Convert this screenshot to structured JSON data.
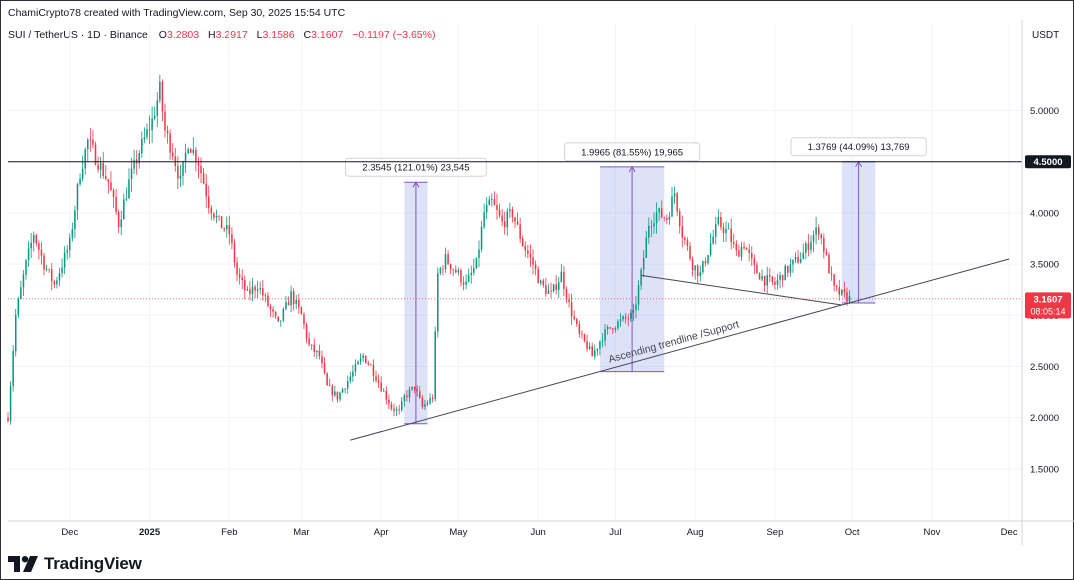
{
  "header": {
    "credit": "ChamiCrypto78 created with TradingView.com, Sep 30, 2025 15:54 UTC",
    "symbol": "SUI / TetherUS · 1D · Binance",
    "ohlc": [
      {
        "label": "O",
        "value": "3.2803"
      },
      {
        "label": "H",
        "value": "3.2917"
      },
      {
        "label": "L",
        "value": "3.1586"
      },
      {
        "label": "C",
        "value": "3.1607"
      },
      {
        "label": "",
        "value": "−0.1197 (−3.65%)"
      }
    ],
    "currency": "USDT"
  },
  "footer": {
    "brand": "TradingView"
  },
  "colors": {
    "up": "#089981",
    "down": "#f23645",
    "range_fill": "#5b6ee1",
    "current_price_bg": "#f23645",
    "resistance_bg": "#131722",
    "grid": "#f0f3fa"
  },
  "chart_data": {
    "type": "candlestick",
    "title": "",
    "ylim": [
      1.0,
      5.65
    ],
    "y_ticks": [
      1.5,
      2.0,
      2.5,
      3.0,
      3.5,
      4.0,
      4.5,
      5.0
    ],
    "y_tick_labels": [
      "1.5000",
      "2.0000",
      "2.5000",
      "3.0000",
      "3.5000",
      "4.0000",
      "4.5000",
      "5.0000"
    ],
    "x_labels": [
      {
        "label": "Dec",
        "date": "2024-12-01"
      },
      {
        "label": "2025",
        "date": "2025-01-01"
      },
      {
        "label": "Feb",
        "date": "2025-02-01"
      },
      {
        "label": "Mar",
        "date": "2025-03-01"
      },
      {
        "label": "Apr",
        "date": "2025-04-01"
      },
      {
        "label": "May",
        "date": "2025-05-01"
      },
      {
        "label": "Jun",
        "date": "2025-06-01"
      },
      {
        "label": "Jul",
        "date": "2025-07-01"
      },
      {
        "label": "Aug",
        "date": "2025-08-01"
      },
      {
        "label": "Sep",
        "date": "2025-09-01"
      },
      {
        "label": "Oct",
        "date": "2025-10-01"
      },
      {
        "label": "Nov",
        "date": "2025-11-01"
      },
      {
        "label": "Dec",
        "date": "2025-12-01"
      }
    ],
    "x_start": "2024-11-07",
    "x_end": "2025-12-06",
    "price_path": [
      [
        "2024-11-07",
        2.0
      ],
      [
        "2024-11-10",
        3.0
      ],
      [
        "2024-11-14",
        3.5
      ],
      [
        "2024-11-17",
        3.8
      ],
      [
        "2024-11-21",
        3.5
      ],
      [
        "2024-11-25",
        3.3
      ],
      [
        "2024-11-28",
        3.5
      ],
      [
        "2024-12-01",
        3.7
      ],
      [
        "2024-12-05",
        4.4
      ],
      [
        "2024-12-08",
        4.7
      ],
      [
        "2024-12-12",
        4.5
      ],
      [
        "2024-12-16",
        4.3
      ],
      [
        "2024-12-20",
        3.9
      ],
      [
        "2024-12-24",
        4.3
      ],
      [
        "2024-12-28",
        4.6
      ],
      [
        "2025-01-02",
        4.9
      ],
      [
        "2025-01-05",
        5.2
      ],
      [
        "2025-01-07",
        4.8
      ],
      [
        "2025-01-10",
        4.6
      ],
      [
        "2025-01-13",
        4.3
      ],
      [
        "2025-01-16",
        4.7
      ],
      [
        "2025-01-20",
        4.5
      ],
      [
        "2025-01-24",
        4.1
      ],
      [
        "2025-01-28",
        3.9
      ],
      [
        "2025-02-01",
        3.8
      ],
      [
        "2025-02-04",
        3.4
      ],
      [
        "2025-02-08",
        3.2
      ],
      [
        "2025-02-12",
        3.3
      ],
      [
        "2025-02-16",
        3.1
      ],
      [
        "2025-02-20",
        2.9
      ],
      [
        "2025-02-25",
        3.2
      ],
      [
        "2025-03-01",
        3.0
      ],
      [
        "2025-03-04",
        2.7
      ],
      [
        "2025-03-08",
        2.6
      ],
      [
        "2025-03-11",
        2.3
      ],
      [
        "2025-03-15",
        2.2
      ],
      [
        "2025-03-20",
        2.4
      ],
      [
        "2025-03-25",
        2.6
      ],
      [
        "2025-03-28",
        2.5
      ],
      [
        "2025-04-01",
        2.3
      ],
      [
        "2025-04-05",
        2.1
      ],
      [
        "2025-04-08",
        2.05
      ],
      [
        "2025-04-10",
        2.2
      ],
      [
        "2025-04-14",
        2.3
      ],
      [
        "2025-04-17",
        2.1
      ],
      [
        "2025-04-21",
        2.2
      ],
      [
        "2025-04-23",
        3.4
      ],
      [
        "2025-04-26",
        3.55
      ],
      [
        "2025-05-01",
        3.4
      ],
      [
        "2025-05-04",
        3.3
      ],
      [
        "2025-05-08",
        3.5
      ],
      [
        "2025-05-11",
        4.0
      ],
      [
        "2025-05-14",
        4.1
      ],
      [
        "2025-05-18",
        3.9
      ],
      [
        "2025-05-22",
        4.0
      ],
      [
        "2025-05-26",
        3.7
      ],
      [
        "2025-05-30",
        3.5
      ],
      [
        "2025-06-02",
        3.3
      ],
      [
        "2025-06-06",
        3.2
      ],
      [
        "2025-06-10",
        3.4
      ],
      [
        "2025-06-13",
        3.1
      ],
      [
        "2025-06-17",
        2.8
      ],
      [
        "2025-06-20",
        2.7
      ],
      [
        "2025-06-22",
        2.6
      ],
      [
        "2025-06-26",
        2.8
      ],
      [
        "2025-06-30",
        2.9
      ],
      [
        "2025-07-04",
        2.95
      ],
      [
        "2025-07-08",
        3.0
      ],
      [
        "2025-07-11",
        3.4
      ],
      [
        "2025-07-14",
        3.9
      ],
      [
        "2025-07-17",
        4.0
      ],
      [
        "2025-07-21",
        3.95
      ],
      [
        "2025-07-24",
        4.2
      ],
      [
        "2025-07-27",
        3.8
      ],
      [
        "2025-07-31",
        3.5
      ],
      [
        "2025-08-03",
        3.4
      ],
      [
        "2025-08-07",
        3.7
      ],
      [
        "2025-08-10",
        3.9
      ],
      [
        "2025-08-14",
        3.8
      ],
      [
        "2025-08-17",
        3.6
      ],
      [
        "2025-08-20",
        3.7
      ],
      [
        "2025-08-24",
        3.45
      ],
      [
        "2025-08-28",
        3.35
      ],
      [
        "2025-09-01",
        3.3
      ],
      [
        "2025-09-04",
        3.4
      ],
      [
        "2025-09-08",
        3.5
      ],
      [
        "2025-09-12",
        3.6
      ],
      [
        "2025-09-15",
        3.75
      ],
      [
        "2025-09-18",
        3.85
      ],
      [
        "2025-09-21",
        3.55
      ],
      [
        "2025-09-24",
        3.25
      ],
      [
        "2025-09-27",
        3.2
      ],
      [
        "2025-09-30",
        3.1607
      ]
    ],
    "horizontal_lines": [
      {
        "name": "resistance",
        "price": 4.5,
        "label": "4.5000"
      },
      {
        "name": "current-price",
        "price": 3.1607,
        "label": "3.1607",
        "countdown": "08:05:14"
      }
    ],
    "trendlines": [
      {
        "name": "ascending-support",
        "from": [
          "2025-03-20",
          1.78
        ],
        "to": [
          "2025-12-01",
          3.55
        ],
        "label": "Ascending trendline /Support"
      },
      {
        "name": "descending-lower-highs",
        "from": [
          "2025-07-11",
          3.39
        ],
        "to": [
          "2025-09-27",
          3.1
        ]
      }
    ],
    "ranges": [
      {
        "name": "range-april",
        "from_date": "2025-04-10",
        "to_date": "2025-04-19",
        "low": 1.94,
        "high": 4.3,
        "label": "2.3545 (121.01%) 23,545"
      },
      {
        "name": "range-july",
        "from_date": "2025-06-25",
        "to_date": "2025-07-20",
        "low": 2.45,
        "high": 4.45,
        "label": "1.9965 (81.55%) 19,965"
      },
      {
        "name": "range-september",
        "from_date": "2025-09-27",
        "to_date": "2025-10-10",
        "low": 3.12,
        "high": 4.5,
        "label": "1.3769 (44.09%) 13,769"
      }
    ]
  }
}
